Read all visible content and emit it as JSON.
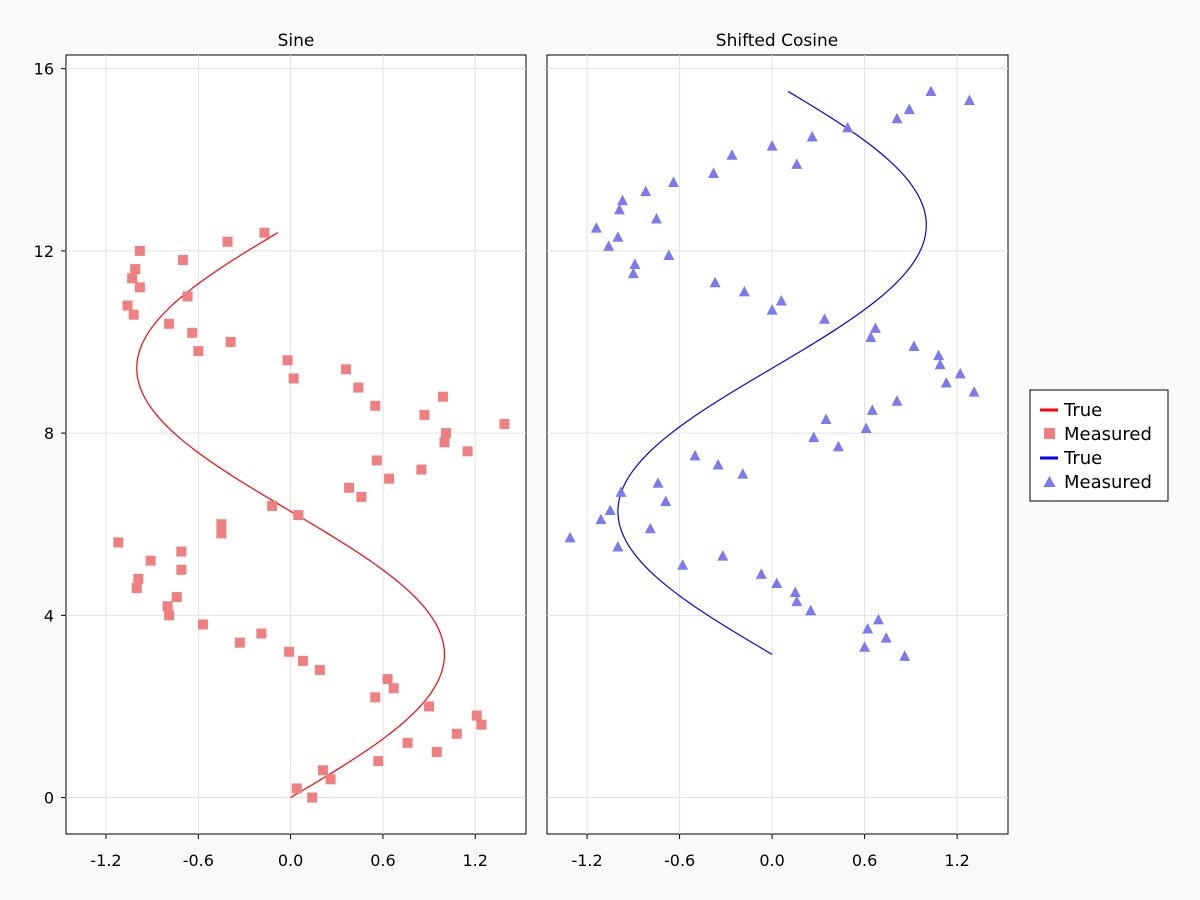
{
  "chart_data": [
    {
      "type": "scatter",
      "title": "Sine",
      "xlim": [
        -1.46,
        1.53
      ],
      "ylim": [
        -0.8,
        16.3
      ],
      "xticks": [
        "-1.2",
        "-0.6",
        "0.0",
        "0.6",
        "1.2"
      ],
      "xtick_values": [
        -1.2,
        -0.6,
        0.0,
        0.6,
        1.2
      ],
      "yticks": [
        "0",
        "4",
        "8",
        "12",
        "16"
      ],
      "ytick_values": [
        0,
        4,
        8,
        12,
        16
      ],
      "grid": true,
      "series": [
        {
          "name": "True",
          "kind": "line",
          "color": "#ff0000",
          "function": "x = sin(0.5*y)",
          "y_range": [
            0,
            12.4
          ]
        },
        {
          "name": "Measured",
          "kind": "scatter",
          "marker": "square",
          "color": "#f08080",
          "points": [
            [
              0.04,
              0.2
            ],
            [
              0.14,
              0.0
            ],
            [
              0.21,
              0.6
            ],
            [
              0.26,
              0.4
            ],
            [
              0.57,
              0.8
            ],
            [
              0.76,
              1.2
            ],
            [
              0.95,
              1.0
            ],
            [
              1.08,
              1.4
            ],
            [
              1.21,
              1.8
            ],
            [
              1.24,
              1.6
            ],
            [
              0.9,
              2.0
            ],
            [
              0.55,
              2.2
            ],
            [
              0.63,
              2.6
            ],
            [
              0.67,
              2.4
            ],
            [
              0.19,
              2.8
            ],
            [
              0.08,
              3.0
            ],
            [
              -0.01,
              3.2
            ],
            [
              -0.33,
              3.4
            ],
            [
              -0.19,
              3.6
            ],
            [
              -0.57,
              3.8
            ],
            [
              -0.79,
              4.0
            ],
            [
              -0.8,
              4.2
            ],
            [
              -0.74,
              4.4
            ],
            [
              -1.0,
              4.6
            ],
            [
              -0.99,
              4.8
            ],
            [
              -0.71,
              5.0
            ],
            [
              -0.91,
              5.2
            ],
            [
              -0.71,
              5.4
            ],
            [
              -1.12,
              5.6
            ],
            [
              -0.45,
              5.8
            ],
            [
              -0.45,
              6.0
            ],
            [
              0.05,
              6.2
            ],
            [
              -0.12,
              6.4
            ],
            [
              0.46,
              6.6
            ],
            [
              0.38,
              6.8
            ],
            [
              0.64,
              7.0
            ],
            [
              0.85,
              7.2
            ],
            [
              0.56,
              7.4
            ],
            [
              1.15,
              7.6
            ],
            [
              1.0,
              7.8
            ],
            [
              1.01,
              8.0
            ],
            [
              1.39,
              8.2
            ],
            [
              0.87,
              8.4
            ],
            [
              0.55,
              8.6
            ],
            [
              0.99,
              8.8
            ],
            [
              0.44,
              9.0
            ],
            [
              0.02,
              9.2
            ],
            [
              0.36,
              9.4
            ],
            [
              -0.02,
              9.6
            ],
            [
              -0.6,
              9.8
            ],
            [
              -0.39,
              10.0
            ],
            [
              -0.64,
              10.2
            ],
            [
              -0.79,
              10.4
            ],
            [
              -1.02,
              10.6
            ],
            [
              -1.06,
              10.8
            ],
            [
              -0.67,
              11.0
            ],
            [
              -0.98,
              11.2
            ],
            [
              -1.03,
              11.4
            ],
            [
              -1.01,
              11.6
            ],
            [
              -0.7,
              11.8
            ],
            [
              -0.98,
              12.0
            ],
            [
              -0.41,
              12.2
            ],
            [
              -0.17,
              12.4
            ]
          ]
        }
      ]
    },
    {
      "type": "scatter",
      "title": "Shifted Cosine",
      "xlim": [
        -1.46,
        1.53
      ],
      "ylim": [
        -0.8,
        16.3
      ],
      "xticks": [
        "-1.2",
        "-0.6",
        "0.0",
        "0.6",
        "1.2"
      ],
      "xtick_values": [
        -1.2,
        -0.6,
        0.0,
        0.6,
        1.2
      ],
      "yticks": [
        "0",
        "4",
        "8",
        "12",
        "16"
      ],
      "ytick_values": [
        0,
        4,
        8,
        12,
        16
      ],
      "grid": true,
      "series": [
        {
          "name": "True",
          "kind": "line",
          "color": "#0000ff",
          "function": "x = cos(0.5*y)",
          "y_range": [
            3.14,
            15.5
          ]
        },
        {
          "name": "Measured",
          "kind": "scatter",
          "marker": "triangle",
          "color": "#7b7bf0",
          "points": [
            [
              0.86,
              3.1
            ],
            [
              0.6,
              3.3
            ],
            [
              0.74,
              3.5
            ],
            [
              0.62,
              3.7
            ],
            [
              0.69,
              3.9
            ],
            [
              0.25,
              4.1
            ],
            [
              0.16,
              4.3
            ],
            [
              0.15,
              4.5
            ],
            [
              0.03,
              4.7
            ],
            [
              -0.07,
              4.9
            ],
            [
              -0.58,
              5.1
            ],
            [
              -0.32,
              5.3
            ],
            [
              -1.0,
              5.5
            ],
            [
              -1.31,
              5.7
            ],
            [
              -0.79,
              5.9
            ],
            [
              -1.11,
              6.1
            ],
            [
              -1.05,
              6.3
            ],
            [
              -0.69,
              6.5
            ],
            [
              -0.98,
              6.7
            ],
            [
              -0.74,
              6.9
            ],
            [
              -0.19,
              7.1
            ],
            [
              -0.35,
              7.3
            ],
            [
              -0.5,
              7.5
            ],
            [
              0.43,
              7.7
            ],
            [
              0.27,
              7.9
            ],
            [
              0.61,
              8.1
            ],
            [
              0.35,
              8.3
            ],
            [
              0.65,
              8.5
            ],
            [
              0.81,
              8.7
            ],
            [
              1.31,
              8.9
            ],
            [
              1.13,
              9.1
            ],
            [
              1.22,
              9.3
            ],
            [
              1.09,
              9.5
            ],
            [
              1.08,
              9.7
            ],
            [
              0.92,
              9.9
            ],
            [
              0.64,
              10.1
            ],
            [
              0.67,
              10.3
            ],
            [
              0.34,
              10.5
            ],
            [
              0.0,
              10.7
            ],
            [
              0.06,
              10.9
            ],
            [
              -0.18,
              11.1
            ],
            [
              -0.37,
              11.3
            ],
            [
              -0.9,
              11.5
            ],
            [
              -0.89,
              11.7
            ],
            [
              -0.67,
              11.9
            ],
            [
              -1.06,
              12.1
            ],
            [
              -1.0,
              12.3
            ],
            [
              -1.14,
              12.5
            ],
            [
              -0.75,
              12.7
            ],
            [
              -0.99,
              12.9
            ],
            [
              -0.97,
              13.1
            ],
            [
              -0.82,
              13.3
            ],
            [
              -0.64,
              13.5
            ],
            [
              -0.38,
              13.7
            ],
            [
              0.16,
              13.9
            ],
            [
              -0.26,
              14.1
            ],
            [
              0.0,
              14.3
            ],
            [
              0.26,
              14.5
            ],
            [
              0.49,
              14.7
            ],
            [
              0.81,
              14.9
            ],
            [
              0.89,
              15.1
            ],
            [
              1.28,
              15.3
            ],
            [
              1.03,
              15.5
            ]
          ]
        }
      ]
    }
  ],
  "legend": {
    "placement": "right",
    "entries": [
      {
        "label": "True",
        "kind": "line",
        "color": "#ff0000"
      },
      {
        "label": "Measured",
        "kind": "square",
        "color": "#f08080"
      },
      {
        "label": "True",
        "kind": "line",
        "color": "#0000ff"
      },
      {
        "label": "Measured",
        "kind": "triangle",
        "color": "#7b7bf0"
      }
    ]
  }
}
